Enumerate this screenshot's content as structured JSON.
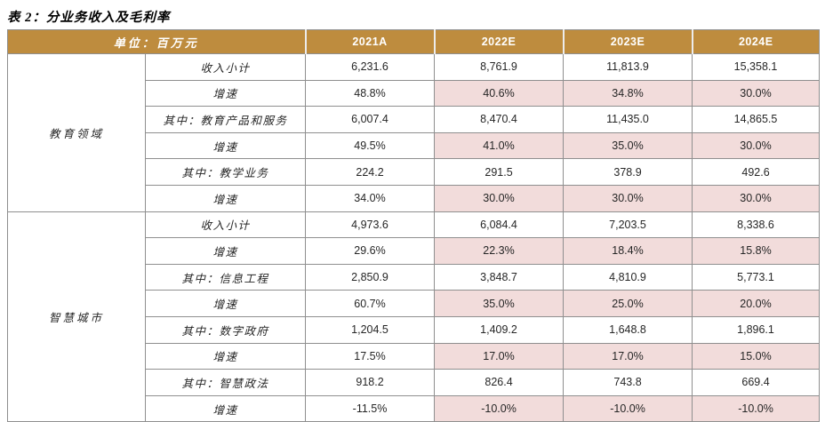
{
  "title": "表 2：分业务收入及毛利率",
  "colors": {
    "header_bg": "#be8c3e",
    "header_text": "#ffffff",
    "growth_highlight_bg": "#f2dcdb",
    "body_text": "#262626",
    "border": "#8f8f8f"
  },
  "table": {
    "unit_header": "单位：百万元",
    "columns": [
      "2021A",
      "2022E",
      "2023E",
      "2024E"
    ],
    "highlight_note": "growth rows highlighted pink only in forecast columns (2022E-2024E)",
    "groups": [
      {
        "name": "教育领域",
        "rows": [
          {
            "label": "收入小计",
            "type": "value",
            "values": [
              "6,231.6",
              "8,761.9",
              "11,813.9",
              "15,358.1"
            ]
          },
          {
            "label": "增速",
            "type": "growth",
            "values": [
              "48.8%",
              "40.6%",
              "34.8%",
              "30.0%"
            ]
          },
          {
            "label": "其中：教育产品和服务",
            "type": "value",
            "values": [
              "6,007.4",
              "8,470.4",
              "11,435.0",
              "14,865.5"
            ]
          },
          {
            "label": "增速",
            "type": "growth",
            "values": [
              "49.5%",
              "41.0%",
              "35.0%",
              "30.0%"
            ]
          },
          {
            "label": "其中：教学业务",
            "type": "value",
            "values": [
              "224.2",
              "291.5",
              "378.9",
              "492.6"
            ]
          },
          {
            "label": "增速",
            "type": "growth",
            "values": [
              "34.0%",
              "30.0%",
              "30.0%",
              "30.0%"
            ]
          }
        ]
      },
      {
        "name": "智慧城市",
        "rows": [
          {
            "label": "收入小计",
            "type": "value",
            "values": [
              "4,973.6",
              "6,084.4",
              "7,203.5",
              "8,338.6"
            ]
          },
          {
            "label": "增速",
            "type": "growth",
            "values": [
              "29.6%",
              "22.3%",
              "18.4%",
              "15.8%"
            ]
          },
          {
            "label": "其中：信息工程",
            "type": "value",
            "values": [
              "2,850.9",
              "3,848.7",
              "4,810.9",
              "5,773.1"
            ]
          },
          {
            "label": "增速",
            "type": "growth",
            "values": [
              "60.7%",
              "35.0%",
              "25.0%",
              "20.0%"
            ]
          },
          {
            "label": "其中：数字政府",
            "type": "value",
            "values": [
              "1,204.5",
              "1,409.2",
              "1,648.8",
              "1,896.1"
            ]
          },
          {
            "label": "增速",
            "type": "growth",
            "values": [
              "17.5%",
              "17.0%",
              "17.0%",
              "15.0%"
            ]
          },
          {
            "label": "其中：智慧政法",
            "type": "value",
            "values": [
              "918.2",
              "826.4",
              "743.8",
              "669.4"
            ]
          },
          {
            "label": "增速",
            "type": "growth",
            "values": [
              "-11.5%",
              "-10.0%",
              "-10.0%",
              "-10.0%"
            ]
          }
        ]
      }
    ]
  }
}
